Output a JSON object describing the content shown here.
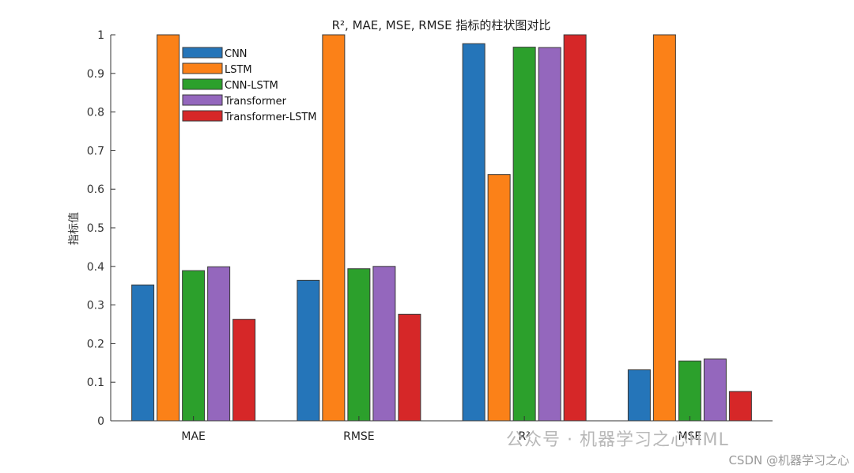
{
  "chart_data": {
    "type": "bar",
    "title": "R², MAE, MSE, RMSE 指标的柱状图对比",
    "xlabel": "",
    "ylabel": "指标值",
    "ylim": [
      0,
      1
    ],
    "yticks": [
      "0",
      "0.1",
      "0.2",
      "0.3",
      "0.4",
      "0.5",
      "0.6",
      "0.7",
      "0.8",
      "0.9",
      "1"
    ],
    "categories": [
      "MAE",
      "RMSE",
      "R²",
      "MSE"
    ],
    "grid": false,
    "legend_position": "top-left",
    "series": [
      {
        "name": "CNN",
        "color": "#2575b9",
        "values": [
          0.352,
          0.364,
          0.977,
          0.132
        ]
      },
      {
        "name": "LSTM",
        "color": "#fb8118",
        "values": [
          1.0,
          1.0,
          0.638,
          1.0
        ]
      },
      {
        "name": "CNN-LSTM",
        "color": "#2ca02c",
        "values": [
          0.389,
          0.394,
          0.968,
          0.155
        ]
      },
      {
        "name": "Transformer",
        "color": "#9467bd",
        "values": [
          0.399,
          0.4,
          0.967,
          0.16
        ]
      },
      {
        "name": "Transformer-LSTM",
        "color": "#d62728",
        "values": [
          0.263,
          0.276,
          1.0,
          0.076
        ]
      }
    ]
  },
  "watermark": {
    "main": "公众号 · 机器学习之心HML",
    "sub": "CSDN @机器学习之心"
  }
}
